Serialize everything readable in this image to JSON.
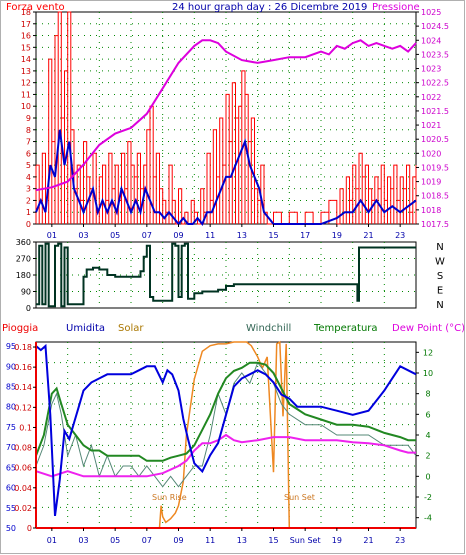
{
  "titles": {
    "wind_label": "Forza vento",
    "date_title": "24 hour graph day : 26 Dicembre 2019",
    "pressure_label": "Pressione",
    "rain_label": "Pioggia",
    "humidity_label": "Umidita",
    "solar_label": "Solar",
    "windchill_label": "Windchill",
    "temperature_label": "Temperatura",
    "dewpoint_label": "Dew Point (°C)",
    "sunrise_label": "Sun Rise",
    "sunset_label": "Sun Set"
  },
  "colors": {
    "wind": "#ff0000",
    "gust": "#ff0000",
    "avg_wind": "#0000cc",
    "pressure": "#dd00dd",
    "direction": "#003322",
    "humidity": "#0000dd",
    "solar": "#ee8822",
    "windchill": "#558877",
    "temperature": "#228822",
    "dewpoint": "#ee22ee",
    "rain": "#ee0000",
    "grid": "#008800"
  },
  "chart_data": [
    {
      "type": "line",
      "name": "wind_pressure",
      "x_ticks": [
        "01",
        "03",
        "05",
        "07",
        "09",
        "11",
        "13",
        "15",
        "17",
        "19",
        "21",
        "23"
      ],
      "xlim": [
        0,
        24
      ],
      "wind_ticks": [
        "0",
        "1",
        "2",
        "3",
        "4",
        "5",
        "6",
        "7",
        "8",
        "9",
        "10",
        "11",
        "12",
        "13",
        "14",
        "15",
        "16",
        "17",
        "18"
      ],
      "ylim_wind": [
        0,
        18
      ],
      "pressure_ticks": [
        "1017.5",
        "1018",
        "1018.5",
        "1019",
        "1019.5",
        "1020",
        "1020.5",
        "1021",
        "1021.5",
        "1022",
        "1022.5",
        "1023",
        "1023.5",
        "1024",
        "1024.5",
        "1025"
      ],
      "ylim_pressure": [
        1017.5,
        1025
      ],
      "gust": {
        "x": [
          0,
          0.2,
          0.4,
          0.6,
          0.8,
          1,
          1.2,
          1.4,
          1.6,
          1.8,
          2,
          2.2,
          2.4,
          2.6,
          2.8,
          3,
          3.2,
          3.4,
          3.6,
          3.8,
          4,
          4.2,
          4.4,
          4.6,
          4.8,
          5,
          5.2,
          5.4,
          5.6,
          5.8,
          6,
          6.2,
          6.4,
          6.6,
          6.8,
          7,
          7.2,
          7.4,
          7.6,
          7.8,
          8,
          8.2,
          8.4,
          8.6,
          8.8,
          9,
          9.2,
          9.4,
          9.6,
          9.8,
          10,
          10.2,
          10.4,
          10.6,
          10.8,
          11,
          11.2,
          11.4,
          11.6,
          11.8,
          12,
          12.2,
          12.4,
          12.6,
          12.8,
          13,
          13.2,
          13.4,
          13.6,
          13.8,
          14,
          14.2,
          14.4,
          14.6,
          14.8,
          15,
          15.5,
          16,
          16.5,
          17,
          17.5,
          18,
          18.5,
          19,
          19.2,
          19.4,
          19.6,
          19.8,
          20,
          20.2,
          20.4,
          20.6,
          20.8,
          21,
          21.2,
          21.4,
          21.6,
          21.8,
          22,
          22.2,
          22.4,
          22.6,
          22.8,
          23,
          23.2,
          23.4,
          23.6,
          23.8,
          24
        ],
        "y": [
          5,
          2,
          6,
          3,
          14,
          7,
          16,
          18,
          9,
          13,
          18,
          8,
          3,
          5,
          2,
          7,
          4,
          3,
          6,
          1,
          4,
          5,
          2,
          6,
          3,
          5,
          2,
          6,
          3,
          7,
          5,
          4,
          6,
          3,
          5,
          8,
          10,
          4,
          6,
          3,
          2,
          1,
          5,
          2,
          0,
          3,
          0,
          1,
          0,
          2,
          1,
          0,
          3,
          1,
          6,
          2,
          8,
          4,
          9,
          5,
          11,
          7,
          12,
          9,
          10,
          13,
          11,
          7,
          9,
          3,
          2,
          5,
          1,
          0,
          0,
          1,
          0,
          1,
          0,
          1,
          0,
          1,
          2,
          0,
          3,
          1,
          4,
          2,
          5,
          3,
          6,
          4,
          5,
          3,
          2,
          4,
          3,
          5,
          2,
          4,
          3,
          5,
          2,
          4,
          3,
          5,
          1,
          4,
          5
        ]
      },
      "avg_wind": {
        "x": [
          0,
          0.3,
          0.6,
          0.9,
          1.2,
          1.5,
          1.8,
          2.1,
          2.4,
          2.7,
          3,
          3.3,
          3.6,
          3.9,
          4.2,
          4.5,
          4.8,
          5.1,
          5.4,
          5.7,
          6,
          6.3,
          6.6,
          6.9,
          7.2,
          7.5,
          7.8,
          8.1,
          8.4,
          8.7,
          9,
          9.3,
          9.6,
          9.9,
          10.2,
          10.5,
          10.8,
          11.1,
          11.4,
          11.7,
          12,
          12.3,
          12.6,
          12.9,
          13.2,
          13.5,
          13.8,
          14.1,
          14.4,
          14.7,
          15,
          16,
          17,
          18,
          19,
          19.5,
          20,
          20.5,
          21,
          21.5,
          22,
          22.5,
          23,
          23.5,
          24
        ],
        "y": [
          1,
          2,
          1,
          5,
          4,
          8,
          5,
          7,
          3,
          2,
          1,
          2,
          3,
          1,
          2,
          1,
          2,
          1,
          3,
          2,
          1,
          2,
          1,
          3,
          2,
          1,
          1,
          0.5,
          1,
          0.5,
          0,
          0.5,
          0,
          0,
          0.5,
          0,
          1,
          1,
          2,
          3,
          4,
          4,
          5,
          6,
          7,
          5,
          4,
          3,
          1,
          0.5,
          0,
          0,
          0,
          0,
          0.5,
          1,
          1,
          2,
          1,
          2,
          1,
          1.5,
          1,
          1.5,
          2
        ]
      },
      "pressure": {
        "x": [
          0,
          1,
          2,
          3,
          4,
          5,
          6,
          7,
          8,
          9,
          10,
          10.5,
          11,
          11.5,
          12,
          13,
          14,
          15,
          16,
          17,
          18,
          18.5,
          19,
          19.5,
          20,
          20.5,
          21,
          21.5,
          22,
          22.5,
          23,
          23.5,
          24
        ],
        "y": [
          1018.7,
          1018.8,
          1019,
          1019.6,
          1020.3,
          1020.7,
          1020.9,
          1021.4,
          1022.3,
          1023.2,
          1023.8,
          1024,
          1024,
          1023.9,
          1023.6,
          1023.3,
          1023.2,
          1023.3,
          1023.4,
          1023.4,
          1023.6,
          1023.5,
          1023.8,
          1023.7,
          1023.9,
          1024,
          1023.8,
          1023.9,
          1023.8,
          1023.7,
          1023.8,
          1023.6,
          1023.9
        ]
      }
    },
    {
      "type": "line",
      "name": "wind_direction",
      "x_ticks": [
        "01",
        "03",
        "05",
        "07",
        "09",
        "11",
        "13",
        "15",
        "17",
        "19",
        "21",
        "23"
      ],
      "xlim": [
        0,
        24
      ],
      "y_ticks": [
        "0",
        "90",
        "180",
        "270",
        "360"
      ],
      "ylim": [
        0,
        360
      ],
      "compass": [
        "N",
        "W",
        "S",
        "E",
        "N"
      ],
      "direction": {
        "x": [
          0,
          0.2,
          0.4,
          0.6,
          0.8,
          1,
          1.2,
          1.4,
          1.6,
          1.8,
          2,
          2.2,
          2.4,
          2.6,
          3,
          3.2,
          3.6,
          4,
          4.5,
          5,
          6,
          6.4,
          6.6,
          6.8,
          7,
          7.2,
          7.4,
          7.6,
          8,
          8.4,
          8.6,
          8.8,
          9,
          9.2,
          9.4,
          9.6,
          10,
          10.5,
          11,
          11.5,
          12,
          12.5,
          13,
          14,
          15,
          16,
          17,
          18,
          19,
          19.5,
          20,
          20.3,
          20.4,
          21,
          22,
          23,
          24
        ],
        "y": [
          20,
          340,
          20,
          350,
          10,
          10,
          340,
          350,
          10,
          330,
          20,
          20,
          20,
          20,
          170,
          210,
          220,
          210,
          180,
          170,
          170,
          170,
          200,
          280,
          340,
          60,
          40,
          40,
          40,
          40,
          350,
          340,
          60,
          340,
          350,
          50,
          80,
          90,
          90,
          100,
          120,
          130,
          130,
          130,
          130,
          130,
          130,
          130,
          130,
          130,
          130,
          40,
          330,
          330,
          330,
          330,
          330
        ]
      }
    },
    {
      "type": "line",
      "name": "temperature_humidity",
      "x_ticks": [
        "01",
        "03",
        "05",
        "07",
        "09",
        "11",
        "13",
        "15",
        "Sun Set",
        "19",
        "21",
        "23"
      ],
      "xlim": [
        0,
        24
      ],
      "humidity_ticks": [
        "50",
        "55",
        "60",
        "65",
        "70",
        "75",
        "80",
        "85",
        "90",
        "95"
      ],
      "ylim_humidity": [
        50,
        96
      ],
      "rain_ticks": [
        "0",
        "0.02",
        "0.04",
        "0.06",
        "0.08",
        "0.1",
        "0.12",
        "0.14",
        "0.16",
        "0.18"
      ],
      "ylim_rain": [
        0,
        0.185
      ],
      "temp_ticks": [
        "-4",
        "-2",
        "0",
        "2",
        "4",
        "6",
        "8",
        "10",
        "12"
      ],
      "ylim_temp": [
        -5,
        13
      ],
      "humidity": {
        "x": [
          0,
          0.3,
          0.6,
          0.9,
          1.2,
          1.5,
          1.8,
          2.1,
          2.4,
          2.7,
          3,
          3.5,
          4,
          4.5,
          5,
          5.5,
          6,
          6.5,
          7,
          7.5,
          8,
          8.3,
          8.6,
          9,
          9.3,
          9.6,
          10,
          10.5,
          11,
          11.5,
          12,
          12.5,
          13,
          13.5,
          14,
          14.5,
          15,
          15.5,
          16,
          16.5,
          17,
          18,
          19,
          20,
          21,
          22,
          23,
          23.5,
          24
        ],
        "y": [
          95,
          94,
          95,
          78,
          53,
          62,
          74,
          72,
          76,
          80,
          84,
          86,
          87,
          88,
          88,
          88,
          88,
          89,
          90,
          90,
          86,
          89,
          88,
          84,
          77,
          72,
          66,
          64,
          68,
          71,
          78,
          85,
          87,
          88,
          89,
          88,
          86,
          83,
          82,
          80,
          80,
          80,
          79,
          78,
          79,
          84,
          90,
          89,
          88
        ]
      },
      "solar": {
        "x": [
          0,
          7.8,
          7.9,
          8,
          8.2,
          8.5,
          8.8,
          9,
          9.3,
          9.5,
          10,
          10.5,
          11,
          11.5,
          12,
          12.5,
          13,
          13.3,
          13.6,
          14,
          14.3,
          14.6,
          15,
          15.2,
          15.4,
          15.6,
          15.8,
          16,
          16.2,
          24
        ],
        "y": [
          0,
          0,
          12,
          6,
          3,
          5,
          8,
          12,
          25,
          50,
          80,
          95,
          98,
          99,
          99,
          100,
          100,
          100,
          98,
          92,
          86,
          92,
          30,
          99,
          100,
          60,
          99,
          0,
          0,
          0
        ]
      },
      "windchill": {
        "x": [
          0,
          0.5,
          1,
          1.3,
          1.6,
          2,
          2.5,
          3,
          3.5,
          4,
          4.5,
          5,
          5.5,
          6,
          6.5,
          7,
          7.5,
          8,
          8.5,
          9,
          9.5,
          10,
          10.5,
          11,
          11.5,
          12,
          12.5,
          13,
          13.5,
          14,
          14.5,
          15,
          15.5,
          16,
          17,
          18,
          19,
          20,
          21,
          22,
          23,
          23.5,
          24
        ],
        "y": [
          1,
          3,
          7,
          8,
          6,
          2,
          4,
          1,
          3,
          0,
          2,
          0,
          1,
          1,
          0,
          1,
          0,
          -1,
          0,
          -1,
          0,
          1,
          1,
          4,
          8,
          6,
          9,
          10,
          9,
          11,
          10,
          9,
          7,
          6,
          5,
          5,
          4,
          4,
          4,
          3,
          3,
          3,
          2
        ]
      },
      "temperature": {
        "x": [
          0,
          0.5,
          1,
          1.3,
          1.6,
          2,
          2.5,
          3,
          3.5,
          4,
          4.5,
          5,
          5.5,
          6,
          6.5,
          7,
          7.5,
          8,
          8.5,
          9,
          9.5,
          10,
          10.5,
          11,
          11.5,
          12,
          12.5,
          13,
          13.5,
          14,
          14.5,
          15,
          15.5,
          16,
          17,
          18,
          19,
          20,
          21,
          22,
          23,
          23.5,
          24
        ],
        "y": [
          2,
          4,
          8,
          8.5,
          7,
          5,
          4,
          3,
          2.5,
          2.5,
          2,
          2,
          2,
          2,
          2,
          1.5,
          1.5,
          1.5,
          1.8,
          2,
          2.2,
          3,
          4.5,
          6,
          8,
          9.5,
          10.2,
          10.5,
          11,
          11,
          10.8,
          10,
          8.5,
          7,
          6,
          5.5,
          5,
          5,
          4.8,
          4.2,
          3.8,
          3.5,
          3.5
        ]
      },
      "dewpoint": {
        "x": [
          0,
          1,
          2,
          3,
          4,
          5,
          6,
          7,
          8,
          9,
          9.5,
          10,
          10.5,
          11,
          11.5,
          12,
          12.5,
          13,
          14,
          15,
          16,
          17,
          18,
          19,
          20,
          21,
          22,
          23,
          23.5,
          24
        ],
        "y": [
          0.5,
          0,
          0.5,
          0,
          0,
          0,
          0,
          0,
          0.3,
          1,
          1.5,
          2.5,
          3.2,
          3.2,
          3.5,
          4,
          3.5,
          3.3,
          3.5,
          3.8,
          3.8,
          3.5,
          3.5,
          3.5,
          3.3,
          3.2,
          3,
          2.5,
          2.3,
          2.3
        ]
      },
      "rain": {
        "x": [
          0,
          24
        ],
        "y": [
          0,
          0
        ]
      }
    }
  ]
}
